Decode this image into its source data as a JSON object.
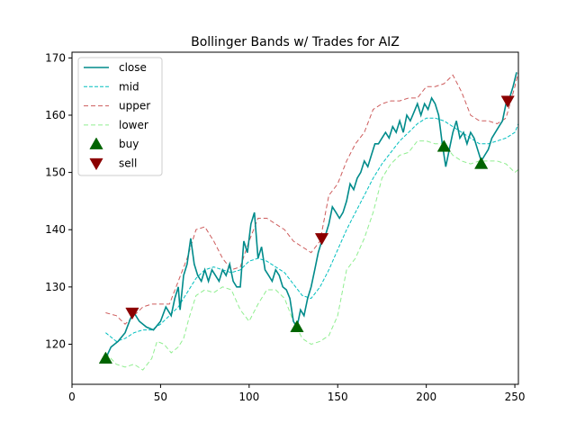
{
  "chart_data": {
    "type": "line",
    "title": "Bollinger Bands w/ Trades for AIZ",
    "xlabel": "",
    "ylabel": "",
    "xlim": [
      0,
      252
    ],
    "ylim": [
      113,
      171
    ],
    "xticks": [
      0,
      50,
      100,
      150,
      200,
      250
    ],
    "yticks": [
      120,
      130,
      140,
      150,
      160,
      170
    ],
    "grid": false,
    "legend_position": "top-left",
    "series": [
      {
        "name": "close",
        "color": "#008b8b",
        "style": "solid",
        "points": [
          [
            19,
            117.5
          ],
          [
            22,
            119.5
          ],
          [
            26,
            120.5
          ],
          [
            30,
            122
          ],
          [
            33,
            124.5
          ],
          [
            35,
            125.5
          ],
          [
            38,
            124
          ],
          [
            42,
            123
          ],
          [
            46,
            122.5
          ],
          [
            50,
            124
          ],
          [
            53,
            126.5
          ],
          [
            56,
            125
          ],
          [
            58,
            128
          ],
          [
            60,
            130
          ],
          [
            61,
            126
          ],
          [
            63,
            132
          ],
          [
            65,
            134
          ],
          [
            67,
            138.5
          ],
          [
            69,
            134
          ],
          [
            71,
            132
          ],
          [
            73,
            131
          ],
          [
            75,
            133
          ],
          [
            77,
            131
          ],
          [
            79,
            133
          ],
          [
            81,
            132
          ],
          [
            83,
            131
          ],
          [
            85,
            133
          ],
          [
            87,
            132
          ],
          [
            89,
            134
          ],
          [
            91,
            131
          ],
          [
            93,
            130
          ],
          [
            95,
            130
          ],
          [
            97,
            138
          ],
          [
            99,
            136
          ],
          [
            101,
            141
          ],
          [
            103,
            143
          ],
          [
            105,
            135
          ],
          [
            107,
            137
          ],
          [
            109,
            133
          ],
          [
            111,
            132
          ],
          [
            113,
            131
          ],
          [
            115,
            133
          ],
          [
            117,
            132
          ],
          [
            119,
            130
          ],
          [
            121,
            129.5
          ],
          [
            123,
            128
          ],
          [
            125,
            124
          ],
          [
            127,
            123
          ],
          [
            129,
            126
          ],
          [
            131,
            125
          ],
          [
            133,
            128
          ],
          [
            135,
            130
          ],
          [
            137,
            133
          ],
          [
            139,
            136
          ],
          [
            141,
            138
          ],
          [
            143,
            139
          ],
          [
            145,
            141
          ],
          [
            147,
            144
          ],
          [
            149,
            143
          ],
          [
            151,
            142
          ],
          [
            153,
            143
          ],
          [
            155,
            145
          ],
          [
            157,
            148
          ],
          [
            159,
            147
          ],
          [
            161,
            149
          ],
          [
            163,
            150
          ],
          [
            165,
            152
          ],
          [
            167,
            151
          ],
          [
            169,
            153
          ],
          [
            171,
            155
          ],
          [
            173,
            155
          ],
          [
            175,
            156
          ],
          [
            177,
            157
          ],
          [
            179,
            156
          ],
          [
            181,
            158
          ],
          [
            183,
            157
          ],
          [
            185,
            159
          ],
          [
            187,
            157
          ],
          [
            189,
            160
          ],
          [
            191,
            159
          ],
          [
            193,
            160.5
          ],
          [
            195,
            162
          ],
          [
            197,
            160
          ],
          [
            199,
            162
          ],
          [
            201,
            161
          ],
          [
            203,
            163
          ],
          [
            205,
            162
          ],
          [
            207,
            160
          ],
          [
            209,
            155
          ],
          [
            211,
            151
          ],
          [
            213,
            154
          ],
          [
            215,
            157
          ],
          [
            217,
            159
          ],
          [
            219,
            156
          ],
          [
            221,
            157
          ],
          [
            223,
            155
          ],
          [
            225,
            157
          ],
          [
            227,
            156
          ],
          [
            229,
            154
          ],
          [
            231,
            152
          ],
          [
            233,
            153
          ],
          [
            235,
            154
          ],
          [
            237,
            156
          ],
          [
            239,
            157
          ],
          [
            241,
            158
          ],
          [
            243,
            159
          ],
          [
            245,
            162
          ],
          [
            247,
            163
          ],
          [
            249,
            165
          ],
          [
            251,
            167.5
          ]
        ]
      },
      {
        "name": "mid",
        "color": "#00bfbf",
        "style": "dashed",
        "points": [
          [
            19,
            122
          ],
          [
            25,
            120.5
          ],
          [
            30,
            121
          ],
          [
            35,
            122
          ],
          [
            40,
            122.5
          ],
          [
            45,
            122.5
          ],
          [
            50,
            123.5
          ],
          [
            55,
            125
          ],
          [
            60,
            126.5
          ],
          [
            65,
            129
          ],
          [
            70,
            131.5
          ],
          [
            75,
            133
          ],
          [
            80,
            133.5
          ],
          [
            85,
            133
          ],
          [
            90,
            132.5
          ],
          [
            95,
            133
          ],
          [
            100,
            134.5
          ],
          [
            105,
            135
          ],
          [
            110,
            134.5
          ],
          [
            115,
            133.5
          ],
          [
            120,
            132.5
          ],
          [
            125,
            130.5
          ],
          [
            130,
            128.5
          ],
          [
            135,
            128
          ],
          [
            140,
            130
          ],
          [
            145,
            133
          ],
          [
            150,
            136.5
          ],
          [
            155,
            140
          ],
          [
            160,
            143
          ],
          [
            165,
            146
          ],
          [
            170,
            149
          ],
          [
            175,
            151.5
          ],
          [
            180,
            153.5
          ],
          [
            185,
            155.5
          ],
          [
            190,
            157
          ],
          [
            195,
            158.5
          ],
          [
            200,
            159.5
          ],
          [
            205,
            159.5
          ],
          [
            210,
            159
          ],
          [
            215,
            158
          ],
          [
            220,
            157
          ],
          [
            225,
            156
          ],
          [
            230,
            155
          ],
          [
            235,
            155
          ],
          [
            240,
            155.5
          ],
          [
            245,
            156
          ],
          [
            250,
            157
          ],
          [
            252,
            158.5
          ]
        ]
      },
      {
        "name": "upper",
        "color": "#cd5c5c",
        "style": "dashed",
        "points": [
          [
            19,
            125.5
          ],
          [
            25,
            125
          ],
          [
            30,
            123.5
          ],
          [
            35,
            125
          ],
          [
            40,
            126.5
          ],
          [
            45,
            127
          ],
          [
            50,
            127
          ],
          [
            55,
            127
          ],
          [
            60,
            131
          ],
          [
            65,
            135
          ],
          [
            70,
            140
          ],
          [
            75,
            140.5
          ],
          [
            80,
            138
          ],
          [
            85,
            135
          ],
          [
            90,
            133
          ],
          [
            95,
            133.5
          ],
          [
            100,
            138
          ],
          [
            105,
            142
          ],
          [
            110,
            142
          ],
          [
            115,
            141
          ],
          [
            120,
            140
          ],
          [
            125,
            138
          ],
          [
            130,
            137
          ],
          [
            135,
            136
          ],
          [
            140,
            138
          ],
          [
            145,
            146
          ],
          [
            150,
            148
          ],
          [
            155,
            152
          ],
          [
            160,
            155
          ],
          [
            165,
            157
          ],
          [
            170,
            161
          ],
          [
            175,
            162
          ],
          [
            180,
            162.5
          ],
          [
            185,
            162.5
          ],
          [
            190,
            163
          ],
          [
            195,
            163
          ],
          [
            200,
            165
          ],
          [
            205,
            165
          ],
          [
            210,
            165.5
          ],
          [
            215,
            167
          ],
          [
            220,
            164
          ],
          [
            225,
            160
          ],
          [
            230,
            159
          ],
          [
            235,
            159
          ],
          [
            240,
            158.5
          ],
          [
            245,
            159.5
          ],
          [
            250,
            165
          ],
          [
            252,
            167.5
          ]
        ]
      },
      {
        "name": "lower",
        "color": "#90ee90",
        "style": "dashed",
        "points": [
          [
            19,
            118.5
          ],
          [
            25,
            116.5
          ],
          [
            30,
            116
          ],
          [
            35,
            116.5
          ],
          [
            40,
            115.5
          ],
          [
            45,
            117.5
          ],
          [
            48,
            120.5
          ],
          [
            52,
            120
          ],
          [
            56,
            118.5
          ],
          [
            60,
            119.5
          ],
          [
            63,
            121
          ],
          [
            66,
            124.5
          ],
          [
            70,
            128.5
          ],
          [
            75,
            129.5
          ],
          [
            80,
            129
          ],
          [
            85,
            130
          ],
          [
            90,
            129.5
          ],
          [
            95,
            126
          ],
          [
            100,
            124
          ],
          [
            105,
            127
          ],
          [
            110,
            129.5
          ],
          [
            115,
            129.5
          ],
          [
            120,
            128
          ],
          [
            125,
            124
          ],
          [
            130,
            121
          ],
          [
            135,
            120
          ],
          [
            140,
            120.5
          ],
          [
            145,
            121.5
          ],
          [
            150,
            125
          ],
          [
            155,
            133
          ],
          [
            160,
            135
          ],
          [
            165,
            138.5
          ],
          [
            170,
            143
          ],
          [
            175,
            149
          ],
          [
            180,
            151.5
          ],
          [
            185,
            153
          ],
          [
            190,
            153.5
          ],
          [
            195,
            155.5
          ],
          [
            200,
            155.5
          ],
          [
            205,
            155
          ],
          [
            210,
            155
          ],
          [
            215,
            153
          ],
          [
            220,
            152
          ],
          [
            225,
            151.5
          ],
          [
            230,
            152
          ],
          [
            235,
            152
          ],
          [
            240,
            152
          ],
          [
            245,
            151.5
          ],
          [
            250,
            150
          ],
          [
            252,
            150.5
          ]
        ]
      }
    ],
    "trades": {
      "buy": {
        "name": "buy",
        "color": "#006400",
        "marker": "triangle-up",
        "points": [
          [
            19,
            117.5
          ],
          [
            127,
            123
          ],
          [
            210,
            154.5
          ],
          [
            231,
            151.5
          ]
        ]
      },
      "sell": {
        "name": "sell",
        "color": "#8b0000",
        "marker": "triangle-down",
        "points": [
          [
            34,
            125.5
          ],
          [
            141,
            138.5
          ],
          [
            246,
            162.5
          ]
        ]
      }
    }
  }
}
